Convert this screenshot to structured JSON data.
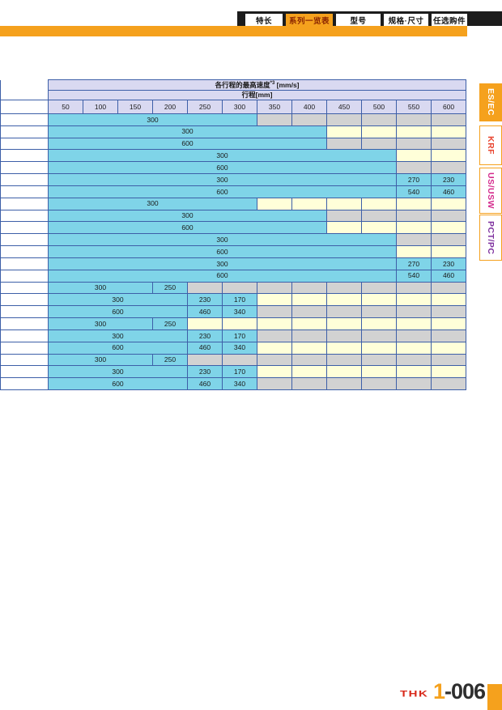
{
  "top_nav": {
    "tabs": [
      {
        "label": "特长",
        "active": false
      },
      {
        "label": "系列一览表",
        "active": true
      },
      {
        "label": "型号",
        "active": false
      },
      {
        "label": "规格·尺寸",
        "active": false
      },
      {
        "label": "任选购件",
        "active": false
      }
    ]
  },
  "side_nav": {
    "tabs": [
      {
        "label": "ES/EC",
        "active": true,
        "text_color": "#ffffff"
      },
      {
        "label": "KRF",
        "active": false,
        "text_color": "#e8432e"
      },
      {
        "label": "US/USW",
        "active": false,
        "text_color": "#d42a8c"
      },
      {
        "label": "PCT/PC",
        "active": false,
        "text_color": "#7d2f9e"
      }
    ]
  },
  "table": {
    "title_main": "各行程的最高速度",
    "title_sup": "*3",
    "title_unit": " [mm/s]",
    "subtitle": "行程[mm]",
    "columns": [
      "50",
      "100",
      "150",
      "200",
      "250",
      "300",
      "350",
      "400",
      "450",
      "500",
      "550",
      "600"
    ],
    "cell_color_legend": {
      "b": "blue",
      "y": "yellow",
      "g": "gray"
    },
    "rows": [
      {
        "cells": [
          [
            "300",
            6,
            "b"
          ],
          [
            "",
            1,
            "g"
          ],
          [
            "",
            1,
            "g"
          ],
          [
            "",
            1,
            "g"
          ],
          [
            "",
            1,
            "g"
          ],
          [
            "",
            1,
            "g"
          ],
          [
            "",
            1,
            "g"
          ]
        ]
      },
      {
        "cells": [
          [
            "300",
            8,
            "b"
          ],
          [
            "",
            1,
            "y"
          ],
          [
            "",
            1,
            "y"
          ],
          [
            "",
            1,
            "y"
          ],
          [
            "",
            1,
            "y"
          ]
        ]
      },
      {
        "cells": [
          [
            "600",
            8,
            "b"
          ],
          [
            "",
            1,
            "g"
          ],
          [
            "",
            1,
            "g"
          ],
          [
            "",
            1,
            "g"
          ],
          [
            "",
            1,
            "g"
          ]
        ]
      },
      {
        "cells": [
          [
            "300",
            10,
            "b"
          ],
          [
            "",
            1,
            "y"
          ],
          [
            "",
            1,
            "y"
          ]
        ]
      },
      {
        "cells": [
          [
            "600",
            10,
            "b"
          ],
          [
            "",
            1,
            "g"
          ],
          [
            "",
            1,
            "g"
          ]
        ]
      },
      {
        "cells": [
          [
            "300",
            10,
            "b"
          ],
          [
            "270",
            1,
            "b"
          ],
          [
            "230",
            1,
            "b"
          ]
        ]
      },
      {
        "cells": [
          [
            "600",
            10,
            "b"
          ],
          [
            "540",
            1,
            "b"
          ],
          [
            "460",
            1,
            "b"
          ]
        ]
      },
      {
        "cells": [
          [
            "300",
            6,
            "b"
          ],
          [
            "",
            1,
            "y"
          ],
          [
            "",
            1,
            "y"
          ],
          [
            "",
            1,
            "y"
          ],
          [
            "",
            1,
            "y"
          ],
          [
            "",
            1,
            "y"
          ],
          [
            "",
            1,
            "y"
          ]
        ]
      },
      {
        "cells": [
          [
            "300",
            8,
            "b"
          ],
          [
            "",
            1,
            "g"
          ],
          [
            "",
            1,
            "g"
          ],
          [
            "",
            1,
            "g"
          ],
          [
            "",
            1,
            "g"
          ]
        ]
      },
      {
        "cells": [
          [
            "600",
            8,
            "b"
          ],
          [
            "",
            1,
            "y"
          ],
          [
            "",
            1,
            "y"
          ],
          [
            "",
            1,
            "y"
          ],
          [
            "",
            1,
            "y"
          ]
        ]
      },
      {
        "cells": [
          [
            "300",
            10,
            "b"
          ],
          [
            "",
            1,
            "g"
          ],
          [
            "",
            1,
            "g"
          ]
        ]
      },
      {
        "cells": [
          [
            "600",
            10,
            "b"
          ],
          [
            "",
            1,
            "y"
          ],
          [
            "",
            1,
            "y"
          ]
        ]
      },
      {
        "cells": [
          [
            "300",
            10,
            "b"
          ],
          [
            "270",
            1,
            "b"
          ],
          [
            "230",
            1,
            "b"
          ]
        ]
      },
      {
        "cells": [
          [
            "600",
            10,
            "b"
          ],
          [
            "540",
            1,
            "b"
          ],
          [
            "460",
            1,
            "b"
          ]
        ]
      },
      {
        "cells": [
          [
            "300",
            3,
            "b"
          ],
          [
            "250",
            1,
            "b"
          ],
          [
            "",
            1,
            "g"
          ],
          [
            "",
            1,
            "g"
          ],
          [
            "",
            1,
            "g"
          ],
          [
            "",
            1,
            "g"
          ],
          [
            "",
            1,
            "g"
          ],
          [
            "",
            1,
            "g"
          ],
          [
            "",
            1,
            "g"
          ],
          [
            "",
            1,
            "g"
          ]
        ]
      },
      {
        "cells": [
          [
            "300",
            4,
            "b"
          ],
          [
            "230",
            1,
            "b"
          ],
          [
            "170",
            1,
            "b"
          ],
          [
            "",
            1,
            "y"
          ],
          [
            "",
            1,
            "y"
          ],
          [
            "",
            1,
            "y"
          ],
          [
            "",
            1,
            "y"
          ],
          [
            "",
            1,
            "y"
          ],
          [
            "",
            1,
            "y"
          ]
        ]
      },
      {
        "cells": [
          [
            "600",
            4,
            "b"
          ],
          [
            "460",
            1,
            "b"
          ],
          [
            "340",
            1,
            "b"
          ],
          [
            "",
            1,
            "g"
          ],
          [
            "",
            1,
            "g"
          ],
          [
            "",
            1,
            "g"
          ],
          [
            "",
            1,
            "g"
          ],
          [
            "",
            1,
            "g"
          ],
          [
            "",
            1,
            "g"
          ]
        ]
      },
      {
        "cells": [
          [
            "300",
            3,
            "b"
          ],
          [
            "250",
            1,
            "b"
          ],
          [
            "",
            1,
            "y"
          ],
          [
            "",
            1,
            "y"
          ],
          [
            "",
            1,
            "y"
          ],
          [
            "",
            1,
            "y"
          ],
          [
            "",
            1,
            "y"
          ],
          [
            "",
            1,
            "y"
          ],
          [
            "",
            1,
            "y"
          ],
          [
            "",
            1,
            "y"
          ]
        ]
      },
      {
        "cells": [
          [
            "300",
            4,
            "b"
          ],
          [
            "230",
            1,
            "b"
          ],
          [
            "170",
            1,
            "b"
          ],
          [
            "",
            1,
            "g"
          ],
          [
            "",
            1,
            "g"
          ],
          [
            "",
            1,
            "g"
          ],
          [
            "",
            1,
            "g"
          ],
          [
            "",
            1,
            "g"
          ],
          [
            "",
            1,
            "g"
          ]
        ]
      },
      {
        "cells": [
          [
            "600",
            4,
            "b"
          ],
          [
            "460",
            1,
            "b"
          ],
          [
            "340",
            1,
            "b"
          ],
          [
            "",
            1,
            "y"
          ],
          [
            "",
            1,
            "y"
          ],
          [
            "",
            1,
            "y"
          ],
          [
            "",
            1,
            "y"
          ],
          [
            "",
            1,
            "y"
          ],
          [
            "",
            1,
            "y"
          ]
        ]
      },
      {
        "cells": [
          [
            "300",
            3,
            "b"
          ],
          [
            "250",
            1,
            "b"
          ],
          [
            "",
            1,
            "g"
          ],
          [
            "",
            1,
            "g"
          ],
          [
            "",
            1,
            "g"
          ],
          [
            "",
            1,
            "g"
          ],
          [
            "",
            1,
            "g"
          ],
          [
            "",
            1,
            "g"
          ],
          [
            "",
            1,
            "g"
          ],
          [
            "",
            1,
            "g"
          ]
        ]
      },
      {
        "cells": [
          [
            "300",
            4,
            "b"
          ],
          [
            "230",
            1,
            "b"
          ],
          [
            "170",
            1,
            "b"
          ],
          [
            "",
            1,
            "y"
          ],
          [
            "",
            1,
            "y"
          ],
          [
            "",
            1,
            "y"
          ],
          [
            "",
            1,
            "y"
          ],
          [
            "",
            1,
            "y"
          ],
          [
            "",
            1,
            "y"
          ]
        ]
      },
      {
        "cells": [
          [
            "600",
            4,
            "b"
          ],
          [
            "460",
            1,
            "b"
          ],
          [
            "340",
            1,
            "b"
          ],
          [
            "",
            1,
            "g"
          ],
          [
            "",
            1,
            "g"
          ],
          [
            "",
            1,
            "g"
          ],
          [
            "",
            1,
            "g"
          ],
          [
            "",
            1,
            "g"
          ],
          [
            "",
            1,
            "g"
          ]
        ]
      }
    ]
  },
  "footer": {
    "logo": "THK",
    "page_prefix": "1",
    "page_suffix": "-006"
  },
  "colors": {
    "accent_orange": "#f5a11d",
    "cell_blue": "#7fd4e8",
    "cell_yellow": "#ffffd9",
    "cell_gray": "#d2d2d2",
    "header_purple": "#d9d9f1",
    "border_blue": "#3d5fa8"
  }
}
